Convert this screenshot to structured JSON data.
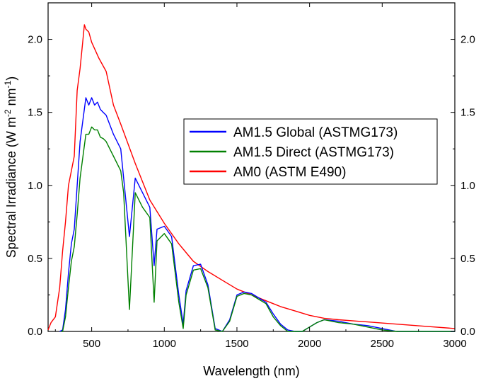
{
  "chart_data": {
    "type": "line",
    "title": "",
    "xlabel": "Wavelength (nm)",
    "ylabel": {
      "main": "Spectral Irradiance (W m",
      "sup1": "-2",
      "mid": " nm",
      "sup2": "-1",
      "end": ")"
    },
    "xlim": [
      200,
      3000
    ],
    "ylim": [
      0,
      2.25
    ],
    "x_ticks": [
      500,
      1000,
      1500,
      2000,
      2500,
      3000
    ],
    "x_tick_labels": [
      "500",
      "1000",
      "1500",
      "2000",
      "2500",
      "3000"
    ],
    "y_ticks": [
      0.0,
      0.5,
      1.0,
      1.5,
      2.0
    ],
    "y_tick_labels": [
      "0.0",
      "0.5",
      "1.0",
      "1.5",
      "2.0"
    ],
    "right_axis_mirrored": true,
    "grid": false,
    "legend_position": "center-right",
    "series": [
      {
        "name": "AM1.5 Global (ASTMG173)",
        "color": "#0000ff",
        "x": [
          280,
          300,
          320,
          340,
          360,
          380,
          400,
          420,
          440,
          460,
          480,
          500,
          520,
          540,
          560,
          580,
          600,
          650,
          700,
          720,
          760,
          800,
          850,
          900,
          930,
          950,
          1000,
          1050,
          1100,
          1130,
          1150,
          1200,
          1250,
          1300,
          1350,
          1400,
          1450,
          1500,
          1550,
          1600,
          1650,
          1700,
          1750,
          1800,
          1850,
          1900,
          1950,
          2000,
          2050,
          2100,
          2200,
          2300,
          2400,
          2500,
          2600,
          3000
        ],
        "y": [
          0,
          0.01,
          0.15,
          0.4,
          0.6,
          0.7,
          1.0,
          1.3,
          1.45,
          1.6,
          1.55,
          1.6,
          1.55,
          1.57,
          1.52,
          1.5,
          1.48,
          1.35,
          1.25,
          1.05,
          0.65,
          1.05,
          0.95,
          0.85,
          0.45,
          0.7,
          0.72,
          0.65,
          0.25,
          0.05,
          0.28,
          0.45,
          0.46,
          0.32,
          0.02,
          0.0,
          0.08,
          0.25,
          0.27,
          0.26,
          0.23,
          0.2,
          0.12,
          0.05,
          0.01,
          0.0,
          0.0,
          0.03,
          0.06,
          0.08,
          0.07,
          0.05,
          0.04,
          0.02,
          0.0,
          0.0
        ]
      },
      {
        "name": "AM1.5 Direct (ASTMG173)",
        "color": "#008000",
        "x": [
          290,
          300,
          320,
          340,
          360,
          380,
          400,
          420,
          440,
          460,
          480,
          500,
          520,
          540,
          560,
          580,
          600,
          650,
          700,
          720,
          760,
          800,
          850,
          900,
          930,
          950,
          1000,
          1050,
          1100,
          1130,
          1150,
          1200,
          1250,
          1300,
          1350,
          1400,
          1450,
          1500,
          1550,
          1600,
          1650,
          1700,
          1750,
          1800,
          1850,
          1900,
          1950,
          2000,
          2050,
          2100,
          2200,
          2300,
          2400,
          2500,
          2600,
          3000
        ],
        "y": [
          0,
          0.0,
          0.1,
          0.3,
          0.48,
          0.58,
          0.8,
          1.05,
          1.2,
          1.35,
          1.35,
          1.4,
          1.38,
          1.38,
          1.33,
          1.32,
          1.3,
          1.2,
          1.1,
          0.95,
          0.15,
          0.95,
          0.85,
          0.78,
          0.2,
          0.62,
          0.67,
          0.6,
          0.2,
          0.02,
          0.25,
          0.42,
          0.43,
          0.3,
          0.01,
          0.0,
          0.07,
          0.24,
          0.26,
          0.25,
          0.22,
          0.19,
          0.1,
          0.04,
          0.0,
          0.0,
          0.0,
          0.03,
          0.06,
          0.08,
          0.06,
          0.05,
          0.03,
          0.01,
          0.0,
          0.0
        ]
      },
      {
        "name": "AM0 (ASTM E490)",
        "color": "#ff0000",
        "x": [
          200,
          220,
          250,
          280,
          300,
          320,
          340,
          360,
          380,
          400,
          420,
          440,
          450,
          460,
          480,
          500,
          550,
          600,
          650,
          700,
          800,
          900,
          1000,
          1100,
          1200,
          1300,
          1400,
          1500,
          1600,
          1700,
          1800,
          1900,
          2000,
          2100,
          2200,
          2400,
          2600,
          2800,
          3000
        ],
        "y": [
          0.01,
          0.06,
          0.1,
          0.3,
          0.55,
          0.75,
          1.0,
          1.1,
          1.2,
          1.65,
          1.8,
          2.0,
          2.1,
          2.07,
          2.05,
          1.98,
          1.87,
          1.78,
          1.55,
          1.42,
          1.15,
          0.9,
          0.74,
          0.6,
          0.48,
          0.41,
          0.35,
          0.29,
          0.25,
          0.21,
          0.17,
          0.14,
          0.11,
          0.09,
          0.08,
          0.065,
          0.05,
          0.035,
          0.02
        ]
      }
    ]
  }
}
